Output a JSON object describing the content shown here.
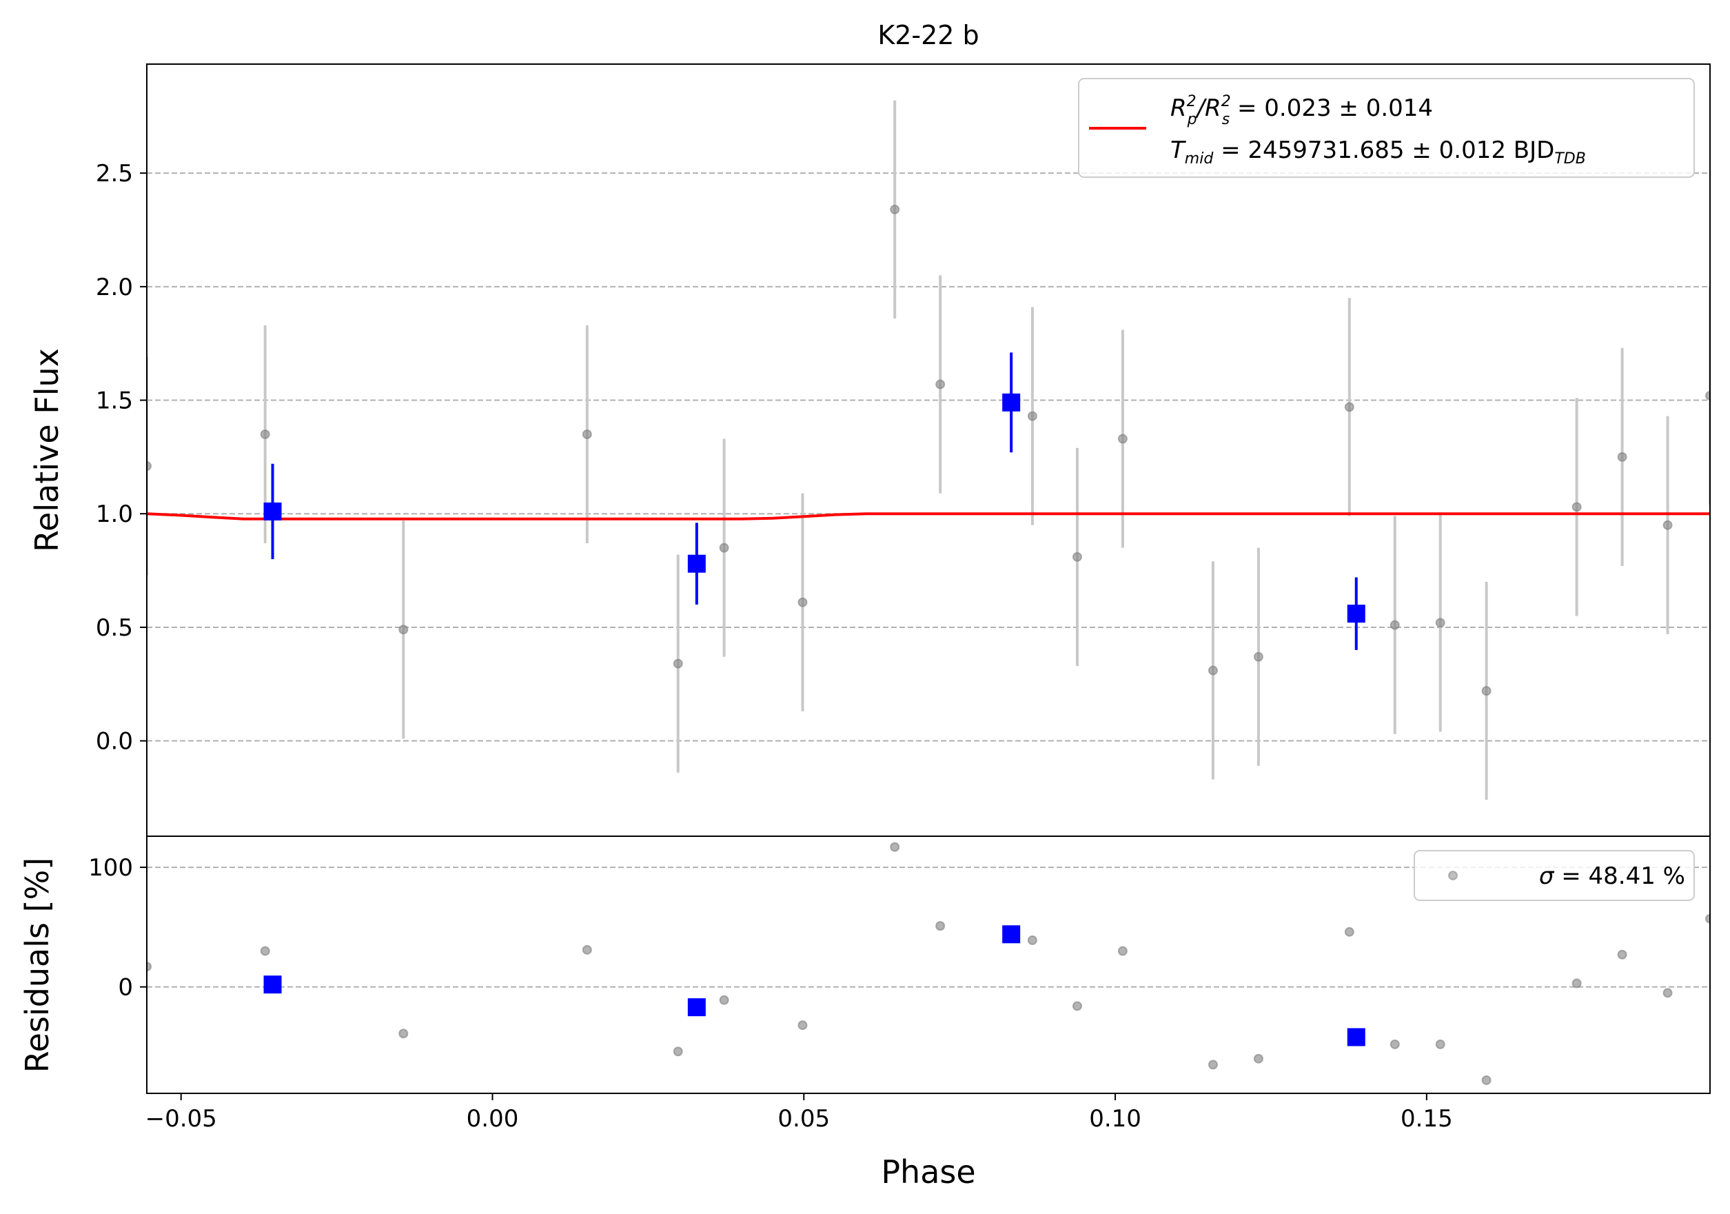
{
  "chart_data": [
    {
      "type": "scatter",
      "panel": "main",
      "title": "K2-22 b",
      "xlabel": "Phase",
      "ylabel": "Relative Flux",
      "xlim": [
        -0.0555,
        0.1955
      ],
      "ylim": [
        -0.42,
        2.98
      ],
      "xticks": [
        -0.05,
        0.0,
        0.05,
        0.1,
        0.15
      ],
      "xtick_labels": [
        "−0.05",
        "0.00",
        "0.05",
        "0.10",
        "0.15"
      ],
      "yticks": [
        0.0,
        0.5,
        1.0,
        1.5,
        2.0,
        2.5
      ],
      "ytick_labels": [
        "0.0",
        "0.5",
        "1.0",
        "1.5",
        "2.0",
        "2.5"
      ],
      "grid": "horizontal dashed",
      "legend_placement": "top-right",
      "colors": {
        "data": "#808080",
        "errorbar": "#c8c8c8",
        "binned": "#0000ff",
        "model": "#ff0000"
      },
      "legend": {
        "line1": {
          "a": "R",
          "a_sup": "2",
          "a_sub": "p",
          "b": "/R",
          "b_sup": "2",
          "b_sub": "s",
          "rest": " = 0.023 ± 0.014"
        },
        "line2": {
          "a": "T",
          "a_sub": "mid",
          "rest": " = 2459731.685 ± 0.012 BJD",
          "rest_sub": "TDB"
        }
      },
      "series": [
        {
          "kind": "data",
          "x": [
            -0.0555,
            -0.0365,
            -0.0143,
            0.0152,
            0.0298,
            0.0372,
            0.0498,
            0.0646,
            0.0719,
            0.0867,
            0.0939,
            0.1012,
            0.1157,
            0.123,
            0.1376,
            0.1449,
            0.1522,
            0.1596,
            0.1741,
            0.1814,
            0.1887,
            0.1955
          ],
          "y": [
            1.21,
            1.35,
            0.49,
            1.35,
            0.34,
            0.85,
            0.61,
            2.34,
            1.57,
            1.43,
            0.81,
            1.33,
            0.31,
            0.37,
            1.47,
            0.51,
            0.52,
            0.22,
            1.03,
            1.25,
            0.95,
            1.52
          ],
          "yerr": [
            0.48,
            0.48,
            0.48,
            0.48,
            0.48,
            0.48,
            0.48,
            0.48,
            0.48,
            0.48,
            0.48,
            0.48,
            0.48,
            0.48,
            0.48,
            0.48,
            0.48,
            0.48,
            0.48,
            0.48,
            0.48,
            0.48
          ]
        },
        {
          "kind": "binned",
          "x": [
            -0.0353,
            0.0328,
            0.0833,
            0.1387
          ],
          "y": [
            1.01,
            0.78,
            1.49,
            0.56
          ],
          "yerr": [
            0.21,
            0.18,
            0.22,
            0.16
          ]
        },
        {
          "kind": "model",
          "x": [
            -0.0555,
            -0.05,
            -0.045,
            -0.04,
            0.0,
            0.04,
            0.045,
            0.05,
            0.055,
            0.06,
            0.1955
          ],
          "y": [
            1.0,
            0.993,
            0.985,
            0.977,
            0.977,
            0.977,
            0.98,
            0.988,
            0.996,
            1.0,
            1.0
          ]
        }
      ]
    },
    {
      "type": "scatter",
      "panel": "residuals",
      "xlabel": "Phase",
      "ylabel": "Residuals [%]",
      "xlim": [
        -0.0555,
        0.1955
      ],
      "ylim": [
        -89,
        126
      ],
      "yticks": [
        0,
        100
      ],
      "ytick_labels": [
        "0",
        "100"
      ],
      "grid": "horizontal dashed",
      "legend_placement": "top-right",
      "legend": {
        "sigma": "σ",
        "rest": " = 48.41 %"
      },
      "series": [
        {
          "kind": "data",
          "x": [
            -0.0555,
            -0.0365,
            -0.0143,
            0.0152,
            0.0298,
            0.0372,
            0.0498,
            0.0646,
            0.0719,
            0.0867,
            0.0939,
            0.1012,
            0.1157,
            0.123,
            0.1376,
            0.1449,
            0.1522,
            0.1596,
            0.1741,
            0.1814,
            0.1887,
            0.1955
          ],
          "y": [
            17,
            30,
            -39,
            31,
            -54,
            -11,
            -32,
            117,
            51,
            39,
            -16,
            30,
            -65,
            -60,
            46,
            -48,
            -48,
            -78,
            3,
            27,
            -5,
            57
          ]
        },
        {
          "kind": "binned",
          "x": [
            -0.0353,
            0.0328,
            0.0833,
            0.1387
          ],
          "y": [
            2,
            -17,
            44,
            -42
          ]
        }
      ]
    }
  ]
}
